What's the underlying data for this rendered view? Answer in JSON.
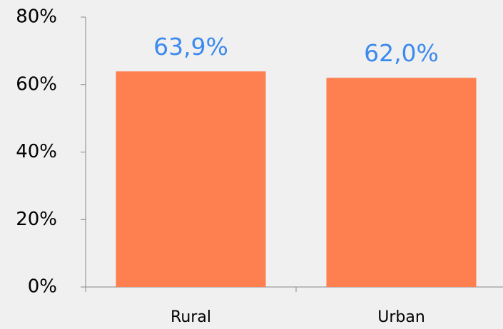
{
  "chart_data": {
    "type": "bar",
    "categories": [
      "Rural",
      "Urban"
    ],
    "values": [
      63.9,
      62.0
    ],
    "value_labels": [
      "63,9%",
      "62,0%"
    ],
    "color": "#fe7f4f",
    "ylim": [
      0,
      80
    ],
    "yticks": [
      {
        "value": 0,
        "label": "0%"
      },
      {
        "value": 20,
        "label": "20%"
      },
      {
        "value": 40,
        "label": "40%"
      },
      {
        "value": 60,
        "label": "60%"
      },
      {
        "value": 80,
        "label": "80%"
      }
    ],
    "grid": false
  }
}
